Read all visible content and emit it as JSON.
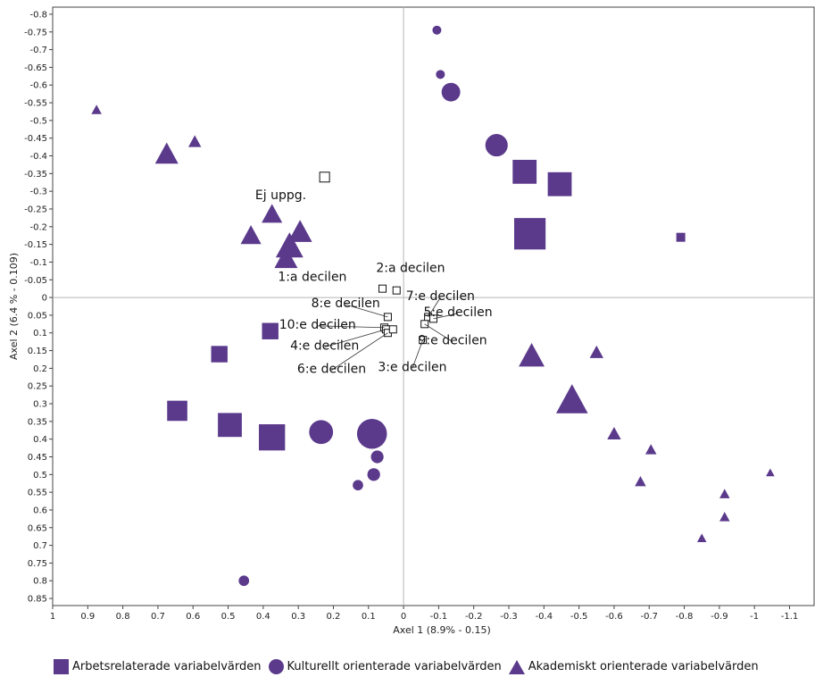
{
  "colors": {
    "marker": "#5b3a8c",
    "axis": "#b5b5b5",
    "frame": "#444444"
  },
  "chart_data": {
    "type": "scatter",
    "title": "",
    "xlabel": "Axel 1 (8.9% - 0.15)",
    "ylabel": "Axel 2 (6.4 % - 0.109)",
    "xlim": [
      1,
      -1.17
    ],
    "ylim": [
      -0.82,
      0.87
    ],
    "x_reversed": true,
    "y_reversed": true,
    "grid": false,
    "zero_lines": true,
    "legend_position": "bottom",
    "x_ticks": [
      1,
      0.9,
      0.8,
      0.7,
      0.6,
      0.5,
      0.4,
      0.3,
      0.2,
      0.1,
      0,
      -0.1,
      -0.2,
      -0.3,
      -0.4,
      -0.5,
      -0.6,
      -0.7,
      -0.8,
      -0.9,
      -1,
      -1.1
    ],
    "x_tick_labels": [
      "1",
      "0.9",
      "0.8",
      "0.7",
      "0.6",
      "0.5",
      "0.4",
      "0.3",
      "0.2",
      "0.1",
      "0",
      "-0.1",
      "-0.2",
      "-0.3",
      "-0.4",
      "-0.5",
      "-0.6",
      "-0.7",
      "-0.8",
      "-0.9",
      "-1",
      "-1.1"
    ],
    "y_ticks": [
      -0.8,
      -0.75,
      -0.7,
      -0.65,
      -0.6,
      -0.55,
      -0.5,
      -0.45,
      -0.4,
      -0.35,
      -0.3,
      -0.25,
      -0.2,
      -0.15,
      -0.1,
      -0.05,
      0,
      0.05,
      0.1,
      0.15,
      0.2,
      0.25,
      0.3,
      0.35,
      0.4,
      0.45,
      0.5,
      0.55,
      0.6,
      0.65,
      0.7,
      0.75,
      0.8,
      0.85
    ],
    "y_tick_labels": [
      "-0.8",
      "-0.75",
      "-0.7",
      "-0.65",
      "-0.6",
      "-0.55",
      "-0.5",
      "-0.45",
      "-0.4",
      "-0.35",
      "-0.3",
      "-0.25",
      "-0.2",
      "-0.15",
      "-0.1",
      "-0.05",
      "0",
      "0.05",
      "0.1",
      "0.15",
      "0.2",
      "0.25",
      "0.3",
      "0.35",
      "0.4",
      "0.45",
      "0.5",
      "0.55",
      "0.6",
      "0.65",
      "0.7",
      "0.75",
      "0.8",
      "0.85"
    ],
    "series": [
      {
        "name": "Arbetsrelaterade variabelvärden",
        "marker": "square",
        "points": [
          {
            "x": -0.345,
            "y": -0.355,
            "size": 3
          },
          {
            "x": -0.445,
            "y": -0.32,
            "size": 3
          },
          {
            "x": -0.36,
            "y": -0.18,
            "size": 4
          },
          {
            "x": -0.79,
            "y": -0.17,
            "size": 1
          },
          {
            "x": 0.38,
            "y": 0.095,
            "size": 2
          },
          {
            "x": 0.525,
            "y": 0.16,
            "size": 2
          },
          {
            "x": 0.645,
            "y": 0.32,
            "size": 2.5
          },
          {
            "x": 0.495,
            "y": 0.36,
            "size": 3
          },
          {
            "x": 0.375,
            "y": 0.395,
            "size": 3.3
          }
        ]
      },
      {
        "name": "Kulturellt orienterade variabelvärden",
        "marker": "circle",
        "points": [
          {
            "x": -0.095,
            "y": -0.755,
            "size": 1
          },
          {
            "x": -0.105,
            "y": -0.63,
            "size": 1
          },
          {
            "x": -0.135,
            "y": -0.58,
            "size": 2.3
          },
          {
            "x": -0.265,
            "y": -0.43,
            "size": 2.8
          },
          {
            "x": 0.235,
            "y": 0.38,
            "size": 3
          },
          {
            "x": 0.09,
            "y": 0.385,
            "size": 3.8
          },
          {
            "x": 0.075,
            "y": 0.45,
            "size": 1.5
          },
          {
            "x": 0.085,
            "y": 0.5,
            "size": 1.5
          },
          {
            "x": 0.13,
            "y": 0.53,
            "size": 1.2
          },
          {
            "x": 0.455,
            "y": 0.8,
            "size": 1.2
          }
        ]
      },
      {
        "name": "Akademiskt orienterade variabelvärden",
        "marker": "triangle",
        "points": [
          {
            "x": 0.875,
            "y": -0.53,
            "size": 1
          },
          {
            "x": 0.595,
            "y": -0.44,
            "size": 1.3
          },
          {
            "x": 0.675,
            "y": -0.405,
            "size": 2.5
          },
          {
            "x": 0.375,
            "y": -0.235,
            "size": 2.2
          },
          {
            "x": 0.295,
            "y": -0.185,
            "size": 2.6
          },
          {
            "x": 0.435,
            "y": -0.175,
            "size": 2.2
          },
          {
            "x": 0.325,
            "y": -0.145,
            "size": 3
          },
          {
            "x": 0.335,
            "y": -0.11,
            "size": 2.5
          },
          {
            "x": -0.365,
            "y": 0.165,
            "size": 2.8
          },
          {
            "x": -0.55,
            "y": 0.155,
            "size": 1.4
          },
          {
            "x": -0.48,
            "y": 0.29,
            "size": 3.5
          },
          {
            "x": -0.6,
            "y": 0.385,
            "size": 1.4
          },
          {
            "x": -0.705,
            "y": 0.43,
            "size": 1.1
          },
          {
            "x": -0.675,
            "y": 0.52,
            "size": 1.1
          },
          {
            "x": -1.045,
            "y": 0.495,
            "size": 0.8
          },
          {
            "x": -0.915,
            "y": 0.555,
            "size": 1
          },
          {
            "x": -0.915,
            "y": 0.62,
            "size": 1
          },
          {
            "x": -0.85,
            "y": 0.68,
            "size": 0.9
          }
        ]
      }
    ],
    "annotations": [
      {
        "text": "Ej uppg.",
        "x": 0.225,
        "y": -0.34,
        "lx": 0.35,
        "ly": -0.29
      },
      {
        "text": "1:a decilen",
        "x": 0.06,
        "y": -0.025,
        "lx": 0.26,
        "ly": -0.06
      },
      {
        "text": "2:a decilen",
        "x": 0.02,
        "y": -0.02,
        "lx": -0.02,
        "ly": -0.085
      },
      {
        "text": "8:e decilen",
        "x": 0.045,
        "y": 0.055,
        "lx": 0.165,
        "ly": 0.015,
        "leader": true
      },
      {
        "text": "7:e decilen",
        "x": -0.07,
        "y": 0.055,
        "lx": -0.105,
        "ly": -0.005,
        "leader": true
      },
      {
        "text": "5:e decilen",
        "x": -0.085,
        "y": 0.06,
        "lx": -0.155,
        "ly": 0.04,
        "leader": true
      },
      {
        "text": "10:e decilen",
        "x": 0.055,
        "y": 0.085,
        "lx": 0.245,
        "ly": 0.075,
        "leader": true
      },
      {
        "text": "9:e decilen",
        "x": -0.06,
        "y": 0.075,
        "lx": -0.14,
        "ly": 0.12,
        "leader": true
      },
      {
        "text": "4:e decilen",
        "x": 0.05,
        "y": 0.09,
        "lx": 0.225,
        "ly": 0.135,
        "leader": true
      },
      {
        "text": "3:e decilen",
        "x": -0.055,
        "y": 0.12,
        "lx": -0.025,
        "ly": 0.195,
        "leader": true
      },
      {
        "text": "6:e decilen",
        "x": 0.045,
        "y": 0.1,
        "lx": 0.205,
        "ly": 0.2,
        "leader": true
      }
    ],
    "decile_markers": [
      {
        "x": 0.225,
        "y": -0.34
      },
      {
        "x": 0.06,
        "y": -0.025
      },
      {
        "x": 0.02,
        "y": -0.02
      },
      {
        "x": -0.07,
        "y": 0.055
      },
      {
        "x": -0.085,
        "y": 0.06
      },
      {
        "x": -0.055,
        "y": 0.12
      },
      {
        "x": 0.045,
        "y": 0.055
      },
      {
        "x": 0.055,
        "y": 0.085
      },
      {
        "x": 0.05,
        "y": 0.09
      },
      {
        "x": -0.06,
        "y": 0.075
      },
      {
        "x": 0.045,
        "y": 0.1
      },
      {
        "x": 0.03,
        "y": 0.09
      }
    ]
  }
}
